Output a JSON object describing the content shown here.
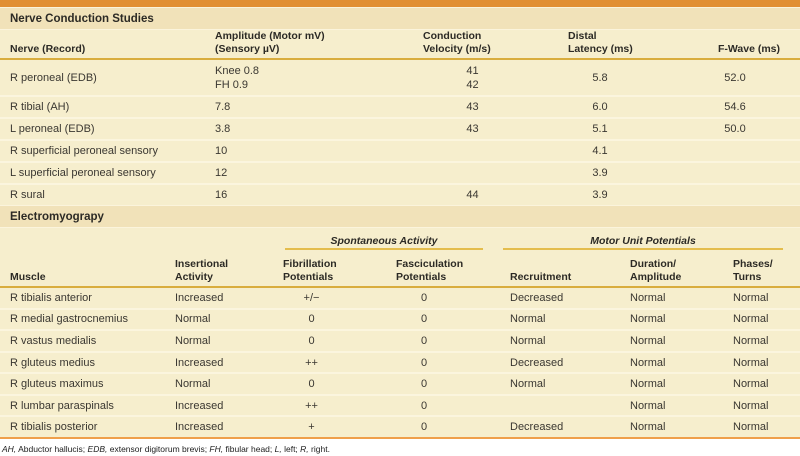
{
  "ncs": {
    "title": "Nerve Conduction Studies",
    "columns": [
      {
        "lines": [
          "Nerve (Record)"
        ]
      },
      {
        "lines": [
          "Amplitude (Motor mV)",
          "(Sensory µV)"
        ]
      },
      {
        "lines": [
          "Conduction",
          "Velocity (m/s)"
        ]
      },
      {
        "lines": [
          "Distal",
          "Latency (ms)"
        ]
      },
      {
        "lines": [
          "F-Wave (ms)"
        ]
      }
    ],
    "rows": [
      {
        "nerve": "R peroneal (EDB)",
        "amplitude": [
          "Knee 0.8",
          "FH 0.9"
        ],
        "velocity": [
          "41",
          "42"
        ],
        "latency": "5.8",
        "fwave": "52.0"
      },
      {
        "nerve": "R tibial (AH)",
        "amplitude": "7.8",
        "velocity": "43",
        "latency": "6.0",
        "fwave": "54.6"
      },
      {
        "nerve": "L peroneal (EDB)",
        "amplitude": "3.8",
        "velocity": "43",
        "latency": "5.1",
        "fwave": "50.0"
      },
      {
        "nerve": "R superficial peroneal sensory",
        "amplitude": "10",
        "velocity": "",
        "latency": "4.1",
        "fwave": ""
      },
      {
        "nerve": "L superficial peroneal sensory",
        "amplitude": "12",
        "velocity": "",
        "latency": "3.9",
        "fwave": ""
      },
      {
        "nerve": "R sural",
        "amplitude": "16",
        "velocity": "44",
        "latency": "3.9",
        "fwave": ""
      }
    ]
  },
  "emg": {
    "title": "Electromyograpy",
    "groups": [
      "Spontaneous Activity",
      "Motor Unit Potentials"
    ],
    "columns": [
      {
        "lines": [
          "Muscle"
        ]
      },
      {
        "lines": [
          "Insertional",
          "Activity"
        ]
      },
      {
        "lines": [
          "Fibrillation",
          "Potentials"
        ]
      },
      {
        "lines": [
          "Fasciculation",
          "Potentials"
        ]
      },
      {
        "lines": [
          "Recruitment"
        ]
      },
      {
        "lines": [
          "Duration/",
          "Amplitude"
        ]
      },
      {
        "lines": [
          "Phases/",
          "Turns"
        ]
      }
    ],
    "rows": [
      {
        "muscle": "R tibialis anterior",
        "insertional": "Increased",
        "fibrillation": "+/−",
        "fasciculation": "0",
        "recruitment": "Decreased",
        "duration": "Normal",
        "phases": "Normal"
      },
      {
        "muscle": "R medial gastrocnemius",
        "insertional": "Normal",
        "fibrillation": "0",
        "fasciculation": "0",
        "recruitment": "Normal",
        "duration": "Normal",
        "phases": "Normal"
      },
      {
        "muscle": "R vastus medialis",
        "insertional": "Normal",
        "fibrillation": "0",
        "fasciculation": "0",
        "recruitment": "Normal",
        "duration": "Normal",
        "phases": "Normal"
      },
      {
        "muscle": "R gluteus medius",
        "insertional": "Increased",
        "fibrillation": "++",
        "fasciculation": "0",
        "recruitment": "Decreased",
        "duration": "Normal",
        "phases": "Normal"
      },
      {
        "muscle": "R gluteus maximus",
        "insertional": "Normal",
        "fibrillation": "0",
        "fasciculation": "0",
        "recruitment": "Normal",
        "duration": "Normal",
        "phases": "Normal"
      },
      {
        "muscle": "R lumbar paraspinals",
        "insertional": "Increased",
        "fibrillation": "++",
        "fasciculation": "0",
        "recruitment": "",
        "duration": "Normal",
        "phases": "Normal"
      },
      {
        "muscle": "R tibialis posterior",
        "insertional": "Increased",
        "fibrillation": "+",
        "fasciculation": "0",
        "recruitment": "Decreased",
        "duration": "Normal",
        "phases": "Normal"
      }
    ]
  },
  "footnote": {
    "segments": [
      {
        "text": "AH,",
        "italic": true
      },
      {
        "text": " Abductor hallucis; ",
        "italic": false
      },
      {
        "text": "EDB,",
        "italic": true
      },
      {
        "text": " extensor digitorum brevis; ",
        "italic": false
      },
      {
        "text": "FH,",
        "italic": true
      },
      {
        "text": " fibular head; ",
        "italic": false
      },
      {
        "text": "L,",
        "italic": true
      },
      {
        "text": " left; ",
        "italic": false
      },
      {
        "text": "R,",
        "italic": true
      },
      {
        "text": " right.",
        "italic": false
      }
    ]
  },
  "colors": {
    "top_bar": "#e18f33",
    "section_row": "#f1e2b9",
    "table_bg": "#f6eecd",
    "header_rule": "#d9ad3e",
    "group_rule": "#e4bd4d",
    "row_separator": "#fbf5de",
    "bottom_rule": "#ef9f4a"
  }
}
